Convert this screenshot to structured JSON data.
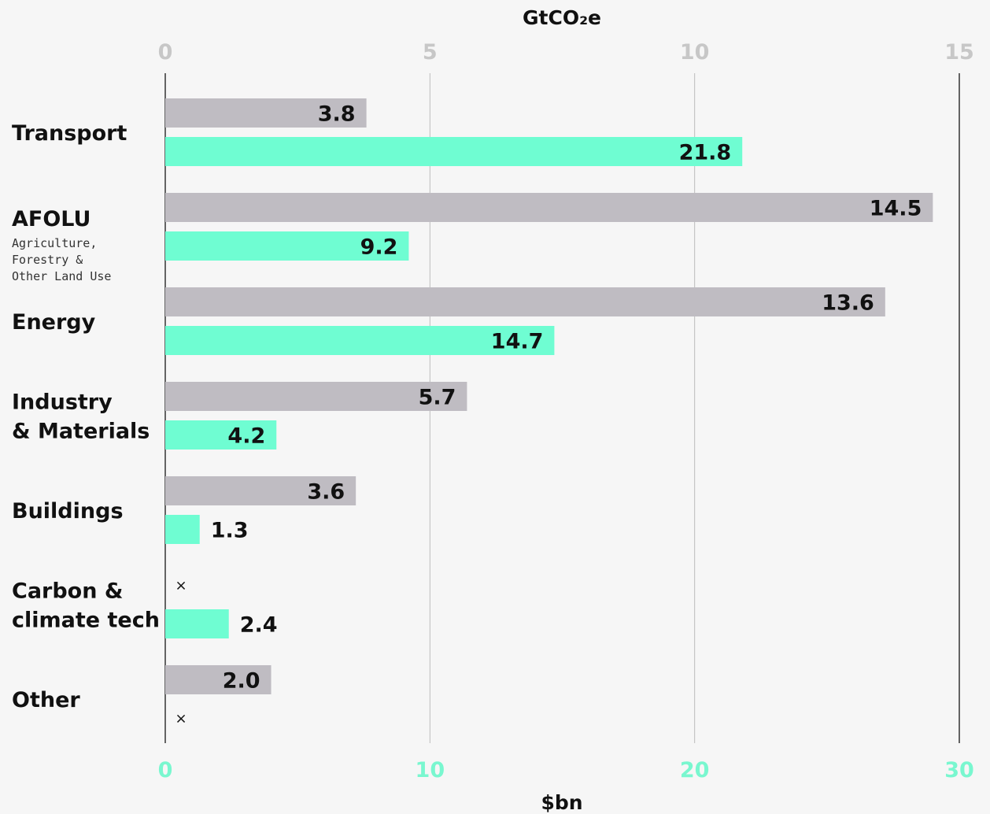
{
  "colors": {
    "emissions": "#bfbcc2",
    "investment": "#6ffdd2",
    "background": "#f6f6f6",
    "top_axis_ticks": "#c7c7c7",
    "bottom_axis_ticks": "#79f7cf"
  },
  "chart_data": {
    "type": "bar",
    "orientation": "horizontal",
    "top_axis": {
      "label": "GtCO₂e",
      "ticks": [
        "0",
        "5",
        "10",
        "15"
      ],
      "range": [
        0,
        15
      ]
    },
    "bottom_axis": {
      "label": "$bn",
      "ticks": [
        "0",
        "10",
        "20",
        "30"
      ],
      "range": [
        0,
        30
      ]
    },
    "categories": [
      {
        "lines": [
          "Transport"
        ],
        "sub": []
      },
      {
        "lines": [
          "AFOLU"
        ],
        "sub": [
          "Agriculture,",
          "Forestry &",
          "Other Land Use"
        ]
      },
      {
        "lines": [
          "Energy"
        ],
        "sub": []
      },
      {
        "lines": [
          "Industry",
          "& Materials"
        ],
        "sub": []
      },
      {
        "lines": [
          "Buildings"
        ],
        "sub": []
      },
      {
        "lines": [
          "Carbon &",
          "climate tech"
        ],
        "sub": []
      },
      {
        "lines": [
          "Other"
        ],
        "sub": []
      }
    ],
    "series": [
      {
        "axis": "top",
        "values": [
          3.8,
          14.5,
          13.6,
          5.7,
          3.6,
          null,
          2.0
        ],
        "labels": [
          "3.8",
          "14.5",
          "13.6",
          "5.7",
          "3.6",
          "×",
          "2.0"
        ]
      },
      {
        "axis": "bottom",
        "values": [
          21.8,
          9.2,
          14.7,
          4.2,
          1.3,
          2.4,
          null
        ],
        "labels": [
          "21.8",
          "9.2",
          "14.7",
          "4.2",
          "1.3",
          "2.4",
          "×"
        ]
      }
    ],
    "grid": true
  }
}
